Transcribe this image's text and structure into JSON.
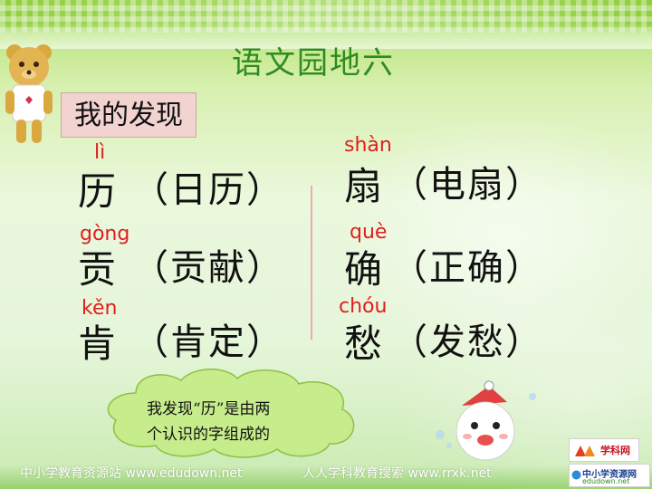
{
  "slide": {
    "title": "语文园地六",
    "label": "我的发现"
  },
  "left_items": [
    {
      "pinyin": "lì",
      "char": "历",
      "word": "（日历）"
    },
    {
      "pinyin": "gòng",
      "char": "贡",
      "word": "（贡献）"
    },
    {
      "pinyin": "kěn",
      "char": "肯",
      "word": "（肯定）"
    }
  ],
  "right_items": [
    {
      "pinyin": "shàn",
      "char": "扇",
      "word": "（电扇）"
    },
    {
      "pinyin": "què",
      "char": "确",
      "word": "（正确）"
    },
    {
      "pinyin": "chóu",
      "char": "愁",
      "word": "（发愁）"
    }
  ],
  "bubble": {
    "line1": "我发现“历”是由两",
    "line2": "个认识的字组成的"
  },
  "footer": {
    "left": "中小学教育资源站 www.edudown.net",
    "right": "人人学科教育搜索 www.rrxk.net"
  },
  "logos": {
    "logo1_text": "学科网",
    "logo2_text": "中小学资源网",
    "logo2_sub": "edudown.net"
  },
  "colors": {
    "title": "#2e8b1e",
    "pinyin": "#e11e1e",
    "label_bg": "#f2d3d0"
  }
}
